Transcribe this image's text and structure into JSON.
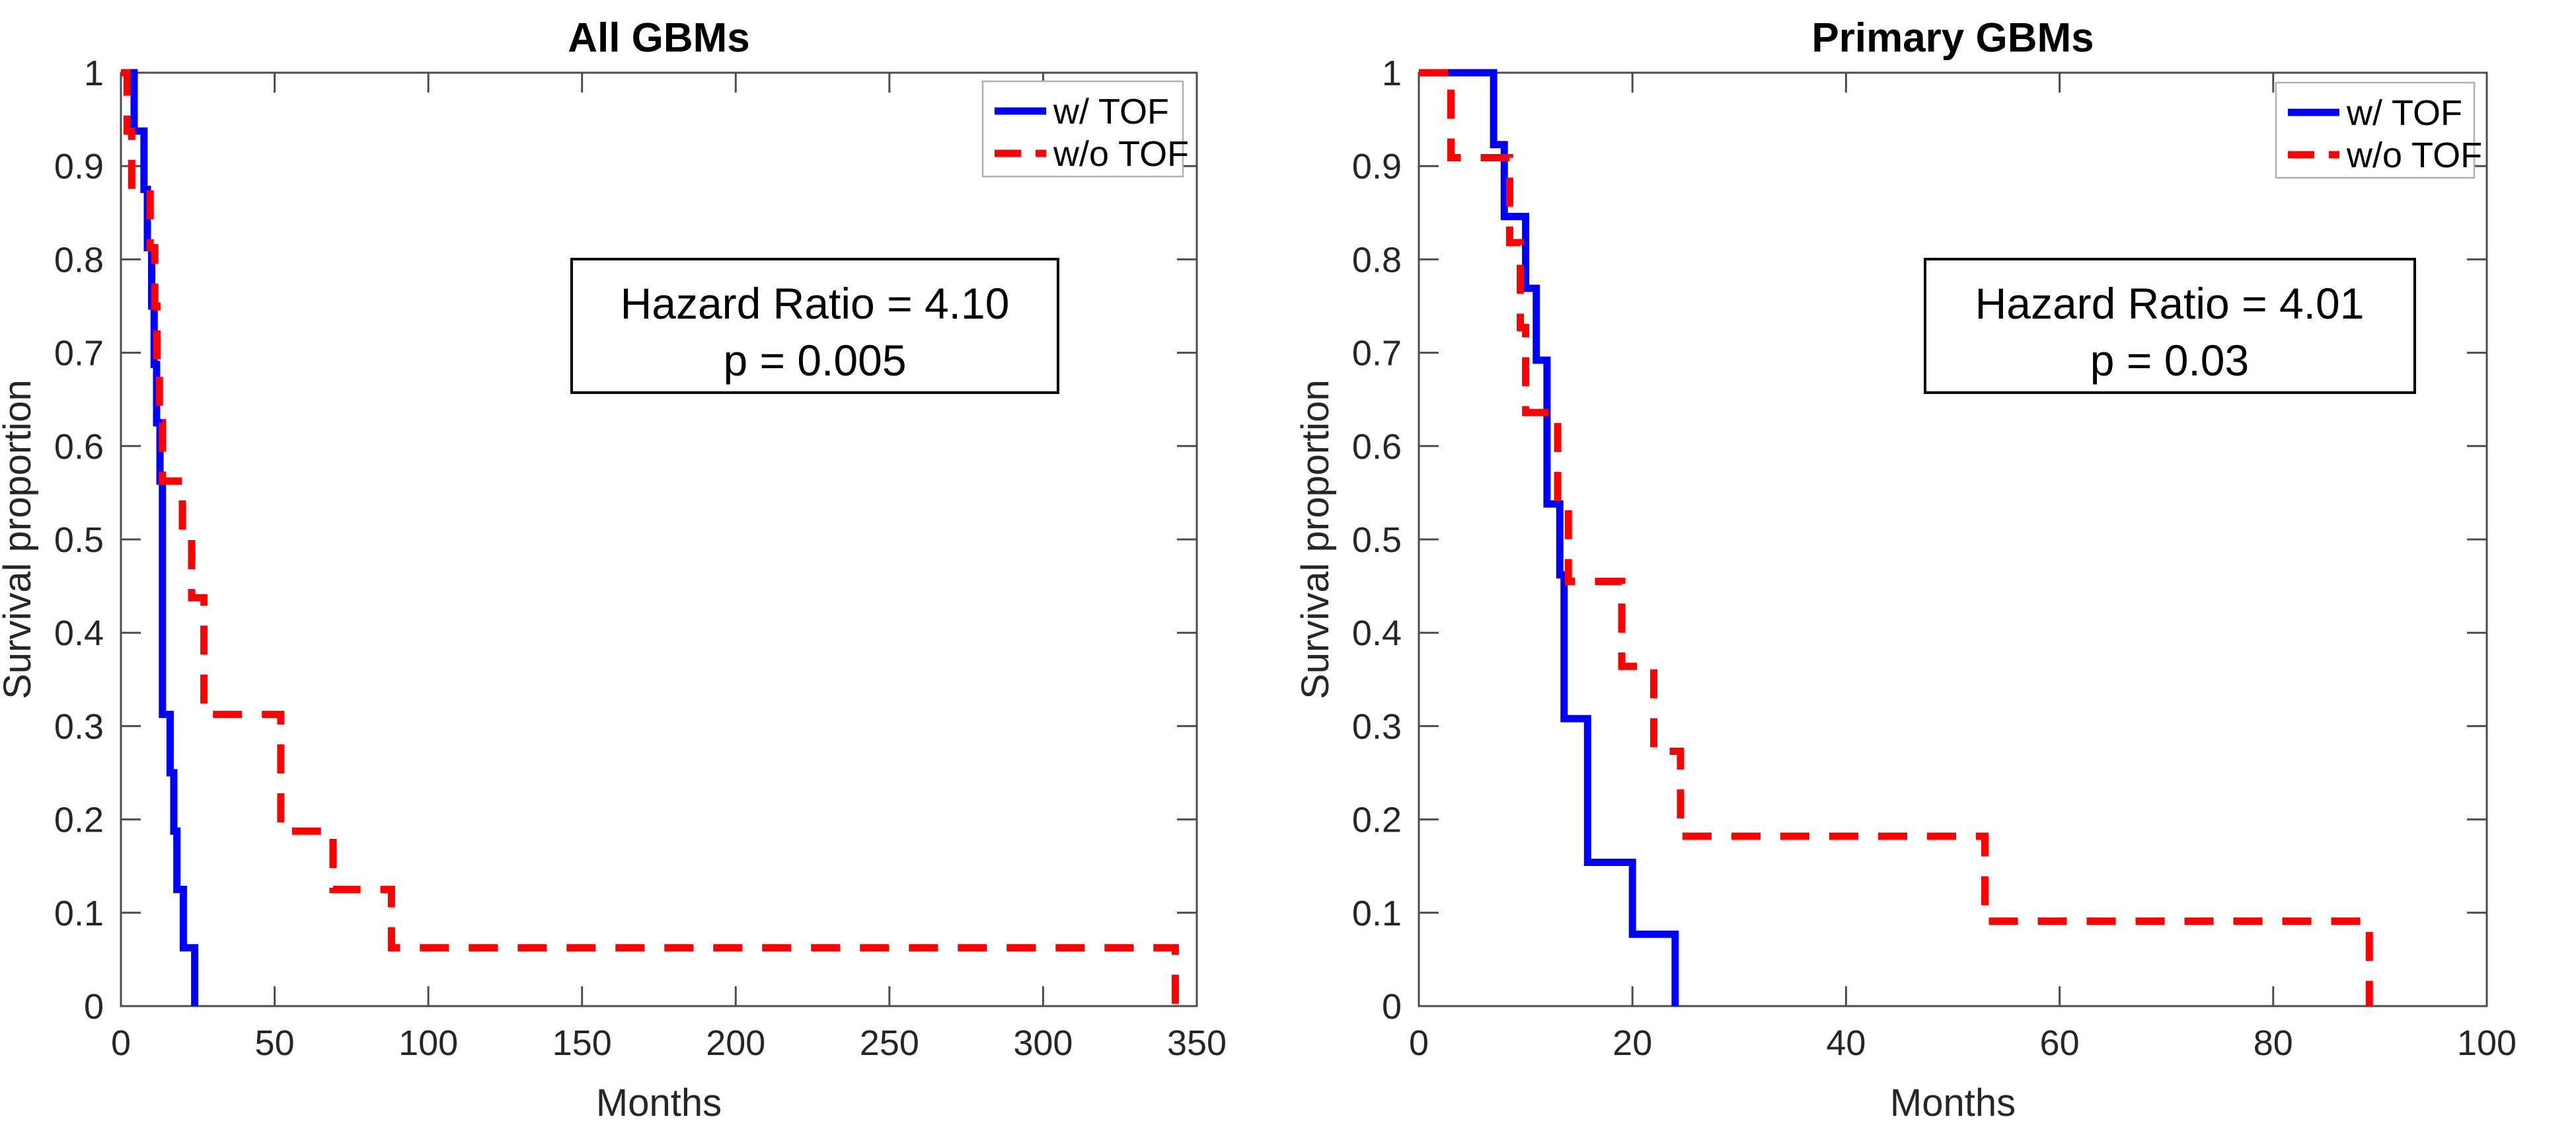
{
  "chart_data": [
    {
      "type": "line",
      "curve": "step-after",
      "title": "All GBMs",
      "xlabel": "Months",
      "ylabel": "Survival proportion",
      "xlim": [
        0,
        350
      ],
      "ylim": [
        0,
        1
      ],
      "x_ticks": [
        0,
        50,
        100,
        150,
        200,
        250,
        300,
        350
      ],
      "y_ticks": [
        0,
        0.1,
        0.2,
        0.3,
        0.4,
        0.5,
        0.6,
        0.7,
        0.8,
        0.9,
        1
      ],
      "grid": false,
      "legend_position": "top-right",
      "annotation": {
        "line1": "Hazard Ratio = 4.10",
        "line2": "p = 0.005"
      },
      "series": [
        {
          "name": "w/ TOF",
          "color": "#0000ff",
          "dashed": false,
          "steps": [
            [
              0,
              1
            ],
            [
              4.3,
              0.9375
            ],
            [
              7.5,
              0.875
            ],
            [
              8.6,
              0.8125
            ],
            [
              10,
              0.75
            ],
            [
              10.8,
              0.6875
            ],
            [
              11.6,
              0.625
            ],
            [
              12.7,
              0.5625
            ],
            [
              13.5,
              0.3125
            ],
            [
              16,
              0.25
            ],
            [
              17.2,
              0.1875
            ],
            [
              18.2,
              0.125
            ],
            [
              20.3,
              0.0625
            ],
            [
              24,
              0
            ]
          ]
        },
        {
          "name": "w/o TOF",
          "color": "#ff0000",
          "dashed": true,
          "steps": [
            [
              0,
              1
            ],
            [
              2,
              0.9375
            ],
            [
              3.5,
              0.875
            ],
            [
              9.5,
              0.8125
            ],
            [
              11,
              0.75
            ],
            [
              11.7,
              0.6875
            ],
            [
              12.5,
              0.625
            ],
            [
              13.5,
              0.5625
            ],
            [
              20,
              0.5
            ],
            [
              23,
              0.4375
            ],
            [
              27,
              0.3125
            ],
            [
              52,
              0.1875
            ],
            [
              69,
              0.125
            ],
            [
              88,
              0.0625
            ],
            [
              343,
              0
            ]
          ]
        }
      ]
    },
    {
      "type": "line",
      "curve": "step-after",
      "title": "Primary GBMs",
      "xlabel": "Months",
      "ylabel": "Survival proportion",
      "xlim": [
        0,
        100
      ],
      "ylim": [
        0,
        1
      ],
      "x_ticks": [
        0,
        20,
        40,
        60,
        80,
        100
      ],
      "y_ticks": [
        0,
        0.1,
        0.2,
        0.3,
        0.4,
        0.5,
        0.6,
        0.7,
        0.8,
        0.9,
        1
      ],
      "grid": false,
      "legend_position": "top-right",
      "annotation": {
        "line1": "Hazard Ratio = 4.01",
        "line2": "p = 0.03"
      },
      "series": [
        {
          "name": "w/ TOF",
          "color": "#0000ff",
          "dashed": false,
          "steps": [
            [
              0,
              1
            ],
            [
              7,
              0.923
            ],
            [
              8,
              0.846
            ],
            [
              10,
              0.769
            ],
            [
              11,
              0.692
            ],
            [
              12,
              0.538
            ],
            [
              13.2,
              0.462
            ],
            [
              13.6,
              0.308
            ],
            [
              15.8,
              0.154
            ],
            [
              20,
              0.077
            ],
            [
              24,
              0
            ]
          ]
        },
        {
          "name": "w/o TOF",
          "color": "#ff0000",
          "dashed": true,
          "steps": [
            [
              0,
              1
            ],
            [
              3,
              0.909
            ],
            [
              8.5,
              0.818
            ],
            [
              9.5,
              0.727
            ],
            [
              10,
              0.636
            ],
            [
              13,
              0.545
            ],
            [
              14,
              0.455
            ],
            [
              19,
              0.364
            ],
            [
              22,
              0.273
            ],
            [
              24.5,
              0.182
            ],
            [
              53,
              0.091
            ],
            [
              89,
              0
            ]
          ]
        }
      ]
    }
  ]
}
